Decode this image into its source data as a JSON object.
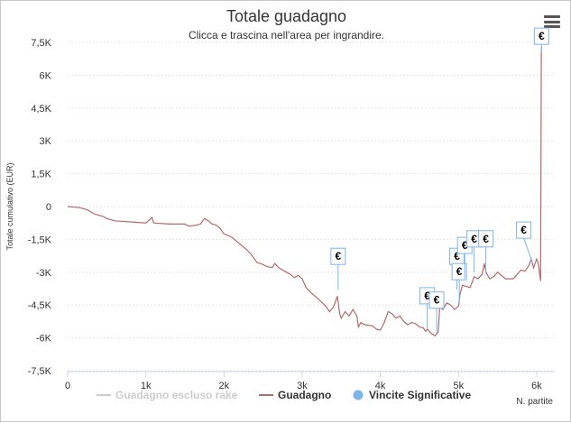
{
  "chart_data": {
    "type": "line",
    "title": "Totale guadagno",
    "subtitle": "Clicca e trascina nell'area per ingrandire.",
    "ylabel": "Totale cumulativo (EUR)",
    "xlabel": "N. partite",
    "xlim": [
      0,
      6070
    ],
    "ylim": [
      -7500,
      7500
    ],
    "x_ticks": [
      0,
      1000,
      2000,
      3000,
      4000,
      5000,
      6000
    ],
    "x_tick_labels": [
      "0",
      "1k",
      "2k",
      "3k",
      "4k",
      "5k",
      "6k"
    ],
    "y_ticks": [
      7500,
      6000,
      4500,
      3000,
      1500,
      0,
      -1500,
      -3000,
      -4500,
      -6000,
      -7500
    ],
    "y_tick_labels": [
      "7,5K",
      "6K",
      "4,5K",
      "3K",
      "1,5K",
      "0",
      "-1,5K",
      "-3K",
      "-4,5K",
      "-6K",
      "-7,5K"
    ],
    "grid": "horizontal",
    "legend_position": "bottom",
    "series": [
      {
        "name": "Guadagno escluso rake",
        "color": "#cccccc",
        "hidden": true,
        "points": []
      },
      {
        "name": "Guadagno",
        "color": "#b46a68",
        "points": [
          [
            0,
            0
          ],
          [
            150,
            -50
          ],
          [
            250,
            -150
          ],
          [
            300,
            -250
          ],
          [
            350,
            -350
          ],
          [
            450,
            -450
          ],
          [
            500,
            -550
          ],
          [
            600,
            -650
          ],
          [
            800,
            -700
          ],
          [
            1000,
            -750
          ],
          [
            1080,
            -500
          ],
          [
            1100,
            -750
          ],
          [
            1300,
            -800
          ],
          [
            1500,
            -800
          ],
          [
            1550,
            -900
          ],
          [
            1650,
            -850
          ],
          [
            1700,
            -800
          ],
          [
            1750,
            -550
          ],
          [
            1800,
            -650
          ],
          [
            1850,
            -800
          ],
          [
            1900,
            -850
          ],
          [
            1950,
            -1000
          ],
          [
            2000,
            -1250
          ],
          [
            2100,
            -1400
          ],
          [
            2200,
            -1700
          ],
          [
            2300,
            -2000
          ],
          [
            2350,
            -2200
          ],
          [
            2420,
            -2550
          ],
          [
            2500,
            -2650
          ],
          [
            2550,
            -2750
          ],
          [
            2620,
            -2780
          ],
          [
            2650,
            -2600
          ],
          [
            2700,
            -2800
          ],
          [
            2800,
            -3000
          ],
          [
            2850,
            -3100
          ],
          [
            2900,
            -3250
          ],
          [
            2950,
            -3150
          ],
          [
            3000,
            -3300
          ],
          [
            3050,
            -3700
          ],
          [
            3100,
            -3900
          ],
          [
            3200,
            -4200
          ],
          [
            3300,
            -4550
          ],
          [
            3350,
            -4800
          ],
          [
            3400,
            -4600
          ],
          [
            3450,
            -4100
          ],
          [
            3480,
            -4900
          ],
          [
            3500,
            -5100
          ],
          [
            3550,
            -4800
          ],
          [
            3600,
            -5000
          ],
          [
            3650,
            -4700
          ],
          [
            3700,
            -5000
          ],
          [
            3720,
            -5500
          ],
          [
            3750,
            -5300
          ],
          [
            3800,
            -5400
          ],
          [
            3900,
            -5450
          ],
          [
            3950,
            -5600
          ],
          [
            4000,
            -5650
          ],
          [
            4050,
            -5300
          ],
          [
            4100,
            -4800
          ],
          [
            4150,
            -4900
          ],
          [
            4200,
            -5100
          ],
          [
            4250,
            -5000
          ],
          [
            4300,
            -5250
          ],
          [
            4350,
            -5400
          ],
          [
            4400,
            -5300
          ],
          [
            4450,
            -5350
          ],
          [
            4500,
            -5500
          ],
          [
            4550,
            -5550
          ],
          [
            4580,
            -5700
          ],
          [
            4600,
            -5600
          ],
          [
            4650,
            -5800
          ],
          [
            4700,
            -5900
          ],
          [
            4740,
            -5750
          ],
          [
            4760,
            -4600
          ],
          [
            4800,
            -4700
          ],
          [
            4850,
            -4400
          ],
          [
            4900,
            -4500
          ],
          [
            4950,
            -4700
          ],
          [
            5000,
            -4550
          ],
          [
            5020,
            -4000
          ],
          [
            5050,
            -3600
          ],
          [
            5100,
            -3650
          ],
          [
            5150,
            -3700
          ],
          [
            5200,
            -3200
          ],
          [
            5250,
            -3300
          ],
          [
            5300,
            -3100
          ],
          [
            5330,
            -2600
          ],
          [
            5350,
            -3000
          ],
          [
            5400,
            -3300
          ],
          [
            5450,
            -3200
          ],
          [
            5500,
            -3000
          ],
          [
            5600,
            -3300
          ],
          [
            5700,
            -3300
          ],
          [
            5750,
            -3100
          ],
          [
            5800,
            -2900
          ],
          [
            5850,
            -2950
          ],
          [
            5900,
            -2700
          ],
          [
            5930,
            -2400
          ],
          [
            5960,
            -2800
          ],
          [
            6000,
            -2400
          ],
          [
            6020,
            -2600
          ],
          [
            6050,
            -3400
          ],
          [
            6060,
            7000
          ],
          [
            6062,
            7300
          ]
        ]
      }
    ],
    "flag_series": {
      "name": "Vincite Significative",
      "color": "#7cb5ec",
      "label": "€",
      "points": [
        {
          "x": 3460,
          "y": -3800
        },
        {
          "x": 4600,
          "y": -5600
        },
        {
          "x": 4720,
          "y": -5800
        },
        {
          "x": 4980,
          "y": -3800
        },
        {
          "x": 5010,
          "y": -4500
        },
        {
          "x": 5080,
          "y": -3300
        },
        {
          "x": 5200,
          "y": -3000
        },
        {
          "x": 5350,
          "y": -3000
        },
        {
          "x": 5950,
          "y": -2600
        },
        {
          "x": 6062,
          "y": 7000
        }
      ]
    }
  }
}
